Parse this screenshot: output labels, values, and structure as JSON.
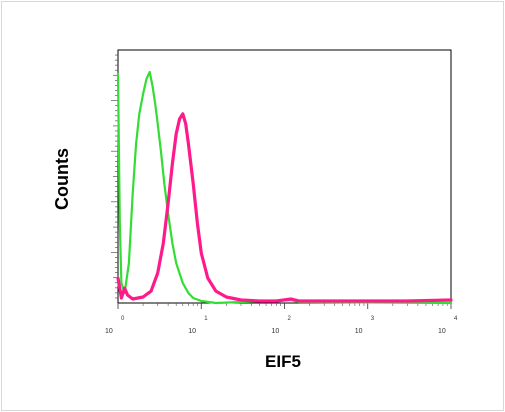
{
  "chart_data": {
    "type": "line",
    "xlabel": "EIF5",
    "ylabel": "Counts",
    "x_scale": "log",
    "xlim": [
      1,
      10000
    ],
    "ylim": [
      0,
      240
    ],
    "x_ticks": [
      {
        "base": "10",
        "exp": "0"
      },
      {
        "base": "10",
        "exp": "1"
      },
      {
        "base": "10",
        "exp": "2"
      },
      {
        "base": "10",
        "exp": "3"
      },
      {
        "base": "10",
        "exp": "4"
      }
    ],
    "grid": false,
    "legend": "none",
    "series": [
      {
        "color": "#33dd33",
        "points": [
          [
            1.0,
            230
          ],
          [
            1.05,
            80
          ],
          [
            1.1,
            20
          ],
          [
            1.2,
            10
          ],
          [
            1.35,
            40
          ],
          [
            1.5,
            110
          ],
          [
            1.65,
            160
          ],
          [
            1.8,
            190
          ],
          [
            2.0,
            210
          ],
          [
            2.2,
            225
          ],
          [
            2.4,
            232
          ],
          [
            2.6,
            218
          ],
          [
            2.8,
            200
          ],
          [
            3.0,
            180
          ],
          [
            3.3,
            150
          ],
          [
            3.6,
            120
          ],
          [
            4.0,
            90
          ],
          [
            4.5,
            60
          ],
          [
            5.0,
            40
          ],
          [
            6.0,
            20
          ],
          [
            7.0,
            10
          ],
          [
            8.0,
            5
          ],
          [
            10.0,
            2
          ],
          [
            15.0,
            0
          ],
          [
            120,
            3
          ],
          [
            150,
            1
          ],
          [
            10000,
            0
          ]
        ]
      },
      {
        "color": "#ff1a8c",
        "points": [
          [
            1.0,
            25
          ],
          [
            1.1,
            5
          ],
          [
            1.2,
            15
          ],
          [
            1.3,
            8
          ],
          [
            1.5,
            4
          ],
          [
            2.0,
            6
          ],
          [
            2.5,
            12
          ],
          [
            3.0,
            30
          ],
          [
            3.5,
            60
          ],
          [
            4.0,
            100
          ],
          [
            4.5,
            140
          ],
          [
            5.0,
            170
          ],
          [
            5.5,
            185
          ],
          [
            6.0,
            190
          ],
          [
            6.5,
            180
          ],
          [
            7.0,
            160
          ],
          [
            8.0,
            120
          ],
          [
            9.0,
            80
          ],
          [
            10.0,
            50
          ],
          [
            12.0,
            25
          ],
          [
            15.0,
            12
          ],
          [
            20.0,
            6
          ],
          [
            30.0,
            3
          ],
          [
            50.0,
            2
          ],
          [
            80.0,
            2
          ],
          [
            120,
            4
          ],
          [
            150,
            2
          ],
          [
            300,
            2
          ],
          [
            1000,
            2
          ],
          [
            3000,
            2
          ],
          [
            10000,
            3
          ]
        ]
      }
    ]
  }
}
